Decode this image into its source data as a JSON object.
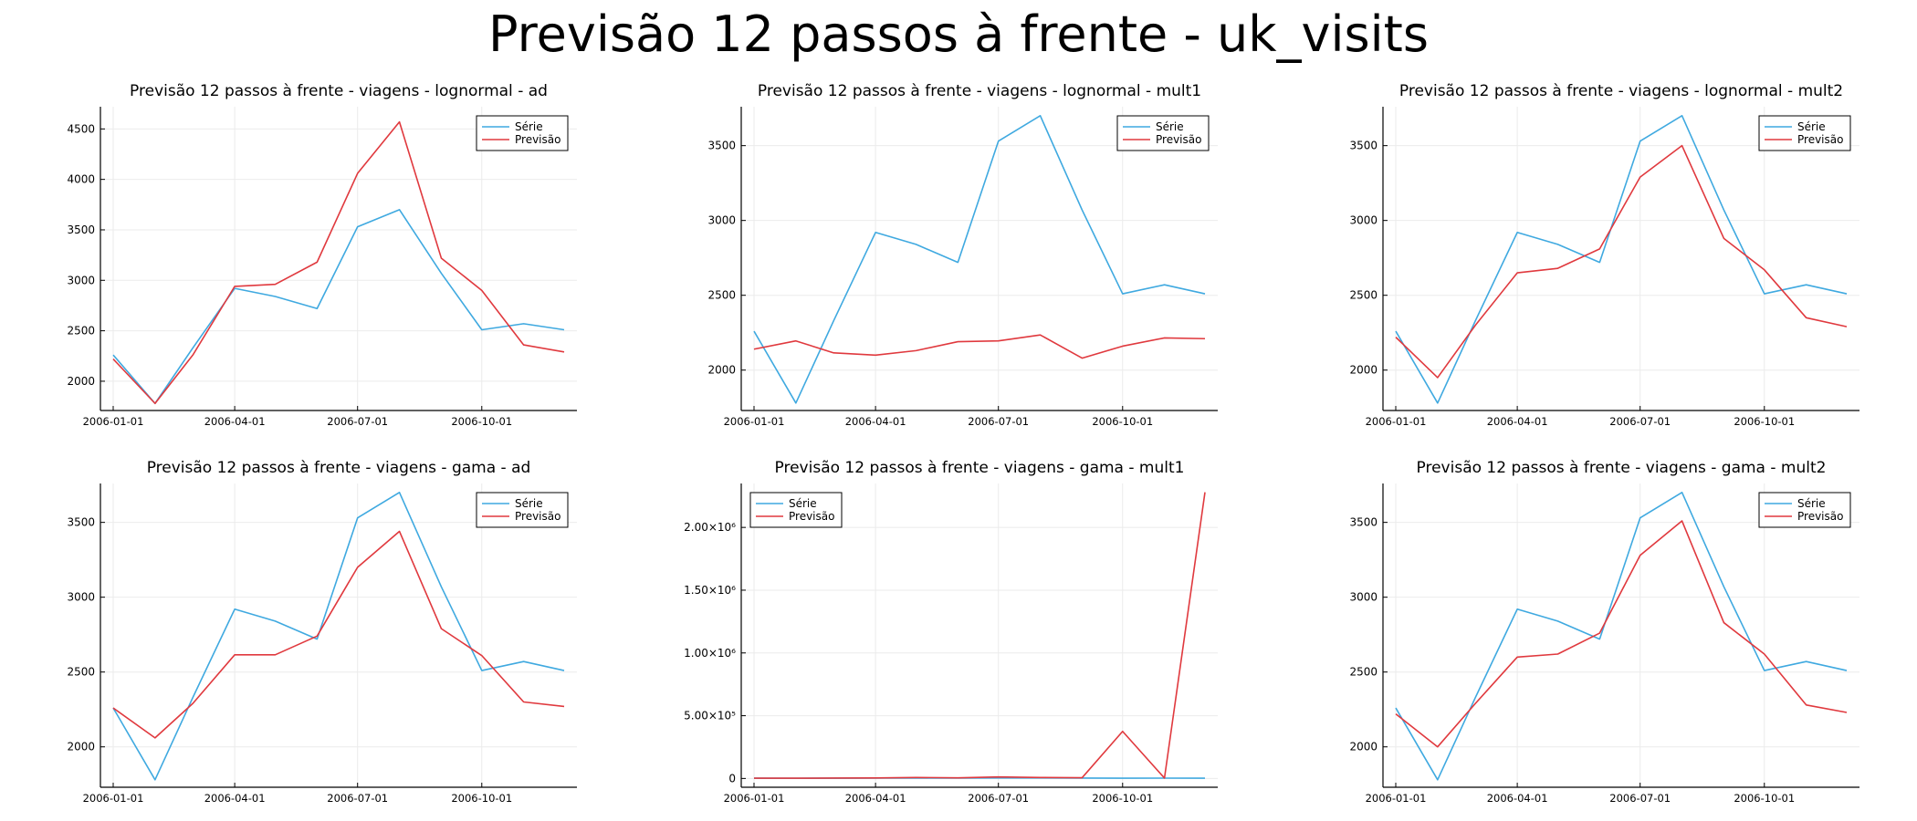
{
  "title": "Previsão 12 passos à frente - uk_visits",
  "colors": {
    "serie": "#3fa9e0",
    "previsao": "#e0393e",
    "grid": "#ebebeb",
    "axis": "#000000"
  },
  "chart_data": [
    {
      "type": "line",
      "title": "Previsão 12 passos à frente - viagens - lognormal - ad",
      "x": [
        "2006-01-01",
        "2006-02-01",
        "2006-03-01",
        "2006-04-01",
        "2006-05-01",
        "2006-06-01",
        "2006-07-01",
        "2006-08-01",
        "2006-09-01",
        "2006-10-01",
        "2006-11-01",
        "2006-12-01"
      ],
      "xticks": [
        "2006-01-01",
        "2006-04-01",
        "2006-07-01",
        "2006-10-01"
      ],
      "yticks": [
        {
          "value": 2000,
          "label": "2000"
        },
        {
          "value": 2500,
          "label": "2500"
        },
        {
          "value": 3000,
          "label": "3000"
        },
        {
          "value": 3500,
          "label": "3500"
        },
        {
          "value": 4000,
          "label": "4000"
        },
        {
          "value": 4500,
          "label": "4500"
        }
      ],
      "ylim": [
        1710,
        4720
      ],
      "legend": "top-right",
      "series": [
        {
          "name": "Série",
          "values": [
            2260,
            1780,
            2330,
            2920,
            2840,
            2720,
            3530,
            3700,
            3070,
            2510,
            2570,
            2510
          ]
        },
        {
          "name": "Previsão",
          "values": [
            2220,
            1780,
            2260,
            2940,
            2960,
            3180,
            4060,
            4570,
            3220,
            2900,
            2360,
            2290
          ]
        }
      ]
    },
    {
      "type": "line",
      "title": "Previsão 12 passos à frente - viagens - lognormal - mult1",
      "x": [
        "2006-01-01",
        "2006-02-01",
        "2006-03-01",
        "2006-04-01",
        "2006-05-01",
        "2006-06-01",
        "2006-07-01",
        "2006-08-01",
        "2006-09-01",
        "2006-10-01",
        "2006-11-01",
        "2006-12-01"
      ],
      "xticks": [
        "2006-01-01",
        "2006-04-01",
        "2006-07-01",
        "2006-10-01"
      ],
      "yticks": [
        {
          "value": 2000,
          "label": "2000"
        },
        {
          "value": 2500,
          "label": "2500"
        },
        {
          "value": 3000,
          "label": "3000"
        },
        {
          "value": 3500,
          "label": "3500"
        }
      ],
      "ylim": [
        1730,
        3760
      ],
      "legend": "top-right",
      "series": [
        {
          "name": "Série",
          "values": [
            2260,
            1780,
            2330,
            2920,
            2840,
            2720,
            3530,
            3700,
            3070,
            2510,
            2570,
            2510
          ]
        },
        {
          "name": "Previsão",
          "values": [
            2140,
            2195,
            2115,
            2100,
            2130,
            2190,
            2195,
            2235,
            2080,
            2160,
            2215,
            2210
          ]
        }
      ]
    },
    {
      "type": "line",
      "title": "Previsão 12 passos à frente - viagens - lognormal - mult2",
      "x": [
        "2006-01-01",
        "2006-02-01",
        "2006-03-01",
        "2006-04-01",
        "2006-05-01",
        "2006-06-01",
        "2006-07-01",
        "2006-08-01",
        "2006-09-01",
        "2006-10-01",
        "2006-11-01",
        "2006-12-01"
      ],
      "xticks": [
        "2006-01-01",
        "2006-04-01",
        "2006-07-01",
        "2006-10-01"
      ],
      "yticks": [
        {
          "value": 2000,
          "label": "2000"
        },
        {
          "value": 2500,
          "label": "2500"
        },
        {
          "value": 3000,
          "label": "3000"
        },
        {
          "value": 3500,
          "label": "3500"
        }
      ],
      "ylim": [
        1730,
        3760
      ],
      "legend": "top-right",
      "series": [
        {
          "name": "Série",
          "values": [
            2260,
            1780,
            2330,
            2920,
            2840,
            2720,
            3530,
            3700,
            3070,
            2510,
            2570,
            2510
          ]
        },
        {
          "name": "Previsão",
          "values": [
            2220,
            1950,
            2300,
            2650,
            2680,
            2810,
            3290,
            3500,
            2880,
            2670,
            2350,
            2290
          ]
        }
      ]
    },
    {
      "type": "line",
      "title": "Previsão 12 passos à frente - viagens - gama - ad",
      "x": [
        "2006-01-01",
        "2006-02-01",
        "2006-03-01",
        "2006-04-01",
        "2006-05-01",
        "2006-06-01",
        "2006-07-01",
        "2006-08-01",
        "2006-09-01",
        "2006-10-01",
        "2006-11-01",
        "2006-12-01"
      ],
      "xticks": [
        "2006-01-01",
        "2006-04-01",
        "2006-07-01",
        "2006-10-01"
      ],
      "yticks": [
        {
          "value": 2000,
          "label": "2000"
        },
        {
          "value": 2500,
          "label": "2500"
        },
        {
          "value": 3000,
          "label": "3000"
        },
        {
          "value": 3500,
          "label": "3500"
        }
      ],
      "ylim": [
        1730,
        3760
      ],
      "legend": "top-right",
      "series": [
        {
          "name": "Série",
          "values": [
            2260,
            1780,
            2330,
            2920,
            2840,
            2720,
            3530,
            3700,
            3070,
            2510,
            2570,
            2510
          ]
        },
        {
          "name": "Previsão",
          "values": [
            2260,
            2060,
            2290,
            2615,
            2615,
            2740,
            3200,
            3440,
            2790,
            2610,
            2300,
            2270
          ]
        }
      ]
    },
    {
      "type": "line",
      "title": "Previsão 12 passos à frente - viagens - gama - mult1",
      "x": [
        "2006-01-01",
        "2006-02-01",
        "2006-03-01",
        "2006-04-01",
        "2006-05-01",
        "2006-06-01",
        "2006-07-01",
        "2006-08-01",
        "2006-09-01",
        "2006-10-01",
        "2006-11-01",
        "2006-12-01"
      ],
      "xticks": [
        "2006-01-01",
        "2006-04-01",
        "2006-07-01",
        "2006-10-01"
      ],
      "yticks": [
        {
          "value": 0,
          "label": "0"
        },
        {
          "value": 500000,
          "label": "5.00×10⁵"
        },
        {
          "value": 1000000,
          "label": "1.00×10⁶"
        },
        {
          "value": 1500000,
          "label": "1.50×10⁶"
        },
        {
          "value": 2000000,
          "label": "2.00×10⁶"
        }
      ],
      "ylim": [
        -70000,
        2350000
      ],
      "legend": "top-left",
      "series": [
        {
          "name": "Série",
          "values": [
            2260,
            1780,
            2330,
            2920,
            2840,
            2720,
            3530,
            3700,
            3070,
            2510,
            2570,
            2510
          ]
        },
        {
          "name": "Previsão",
          "values": [
            2000,
            2200,
            3000,
            4000,
            8000,
            5000,
            12000,
            8000,
            6000,
            375000,
            3000,
            2280000
          ]
        }
      ]
    },
    {
      "type": "line",
      "title": "Previsão 12 passos à frente - viagens - gama - mult2",
      "x": [
        "2006-01-01",
        "2006-02-01",
        "2006-03-01",
        "2006-04-01",
        "2006-05-01",
        "2006-06-01",
        "2006-07-01",
        "2006-08-01",
        "2006-09-01",
        "2006-10-01",
        "2006-11-01",
        "2006-12-01"
      ],
      "xticks": [
        "2006-01-01",
        "2006-04-01",
        "2006-07-01",
        "2006-10-01"
      ],
      "yticks": [
        {
          "value": 2000,
          "label": "2000"
        },
        {
          "value": 2500,
          "label": "2500"
        },
        {
          "value": 3000,
          "label": "3000"
        },
        {
          "value": 3500,
          "label": "3500"
        }
      ],
      "ylim": [
        1730,
        3760
      ],
      "legend": "top-right",
      "series": [
        {
          "name": "Série",
          "values": [
            2260,
            1780,
            2330,
            2920,
            2840,
            2720,
            3530,
            3700,
            3070,
            2510,
            2570,
            2510
          ]
        },
        {
          "name": "Previsão",
          "values": [
            2220,
            2000,
            2290,
            2600,
            2620,
            2760,
            3280,
            3510,
            2830,
            2620,
            2280,
            2230
          ]
        }
      ]
    }
  ]
}
